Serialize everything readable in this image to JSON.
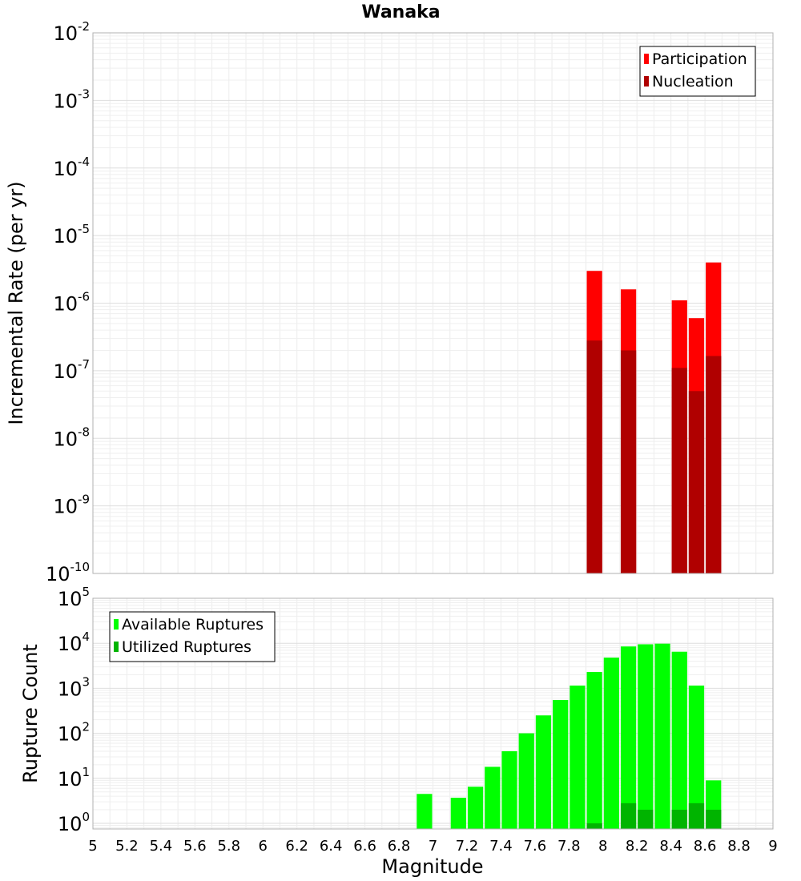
{
  "chart_data": [
    {
      "type": "bar",
      "title": "Wanaka",
      "xlabel": "",
      "ylabel": "Incremental Rate (per yr)",
      "x_range": [
        5,
        9
      ],
      "y_scale": "log",
      "y_range": [
        1e-10,
        0.01
      ],
      "y_ticks": [
        {
          "base": "10",
          "exp": "-2"
        },
        {
          "base": "10",
          "exp": "-3"
        },
        {
          "base": "10",
          "exp": "-4"
        },
        {
          "base": "10",
          "exp": "-5"
        },
        {
          "base": "10",
          "exp": "-6"
        },
        {
          "base": "10",
          "exp": "-7"
        },
        {
          "base": "10",
          "exp": "-8"
        },
        {
          "base": "10",
          "exp": "-9"
        },
        {
          "base": "10",
          "exp": "-10"
        }
      ],
      "legend_position": "top-right",
      "bar_width": 0.1,
      "grid": true,
      "series": [
        {
          "name": "Participation",
          "color": "#ff0000",
          "points": [
            [
              7.95,
              3e-06
            ],
            [
              8.15,
              1.6e-06
            ],
            [
              8.45,
              1.1e-06
            ],
            [
              8.55,
              6e-07
            ],
            [
              8.65,
              4e-06
            ]
          ]
        },
        {
          "name": "Nucleation",
          "color": "#b00000",
          "points": [
            [
              7.95,
              2.8e-07
            ],
            [
              8.15,
              2e-07
            ],
            [
              8.45,
              1.1e-07
            ],
            [
              8.55,
              5e-08
            ],
            [
              8.65,
              1.65e-07
            ]
          ]
        }
      ]
    },
    {
      "type": "bar",
      "title": "",
      "xlabel": "Magnitude",
      "ylabel": "Rupture Count",
      "x_range": [
        5,
        9
      ],
      "x_ticks": [
        "5",
        "5.2",
        "5.4",
        "5.6",
        "5.8",
        "6",
        "6.2",
        "6.4",
        "6.6",
        "6.8",
        "7",
        "7.2",
        "7.4",
        "7.6",
        "7.8",
        "8",
        "8.2",
        "8.4",
        "8.6",
        "8.8",
        "9"
      ],
      "y_scale": "log",
      "y_range": [
        0.75,
        100000.0
      ],
      "y_ticks": [
        {
          "base": "10",
          "exp": "5"
        },
        {
          "base": "10",
          "exp": "4"
        },
        {
          "base": "10",
          "exp": "3"
        },
        {
          "base": "10",
          "exp": "2"
        },
        {
          "base": "10",
          "exp": "1"
        },
        {
          "base": "10",
          "exp": "0"
        }
      ],
      "legend_position": "top-left",
      "bar_width": 0.1,
      "grid": true,
      "series": [
        {
          "name": "Available Ruptures",
          "color": "#00ff00",
          "points": [
            [
              6.95,
              4.5
            ],
            [
              7.15,
              3.7
            ],
            [
              7.25,
              6.5
            ],
            [
              7.35,
              18
            ],
            [
              7.45,
              40
            ],
            [
              7.55,
              100
            ],
            [
              7.65,
              250
            ],
            [
              7.75,
              550
            ],
            [
              7.85,
              1150
            ],
            [
              7.95,
              2300
            ],
            [
              8.05,
              4800
            ],
            [
              8.15,
              8500
            ],
            [
              8.25,
              9500
            ],
            [
              8.35,
              9800
            ],
            [
              8.45,
              6500
            ],
            [
              8.55,
              1150
            ],
            [
              8.65,
              9
            ]
          ]
        },
        {
          "name": "Utilized Ruptures",
          "color": "#00b400",
          "points": [
            [
              7.95,
              1
            ],
            [
              8.15,
              2.8
            ],
            [
              8.25,
              2
            ],
            [
              8.45,
              2
            ],
            [
              8.55,
              2.8
            ],
            [
              8.65,
              2
            ]
          ]
        }
      ]
    }
  ]
}
